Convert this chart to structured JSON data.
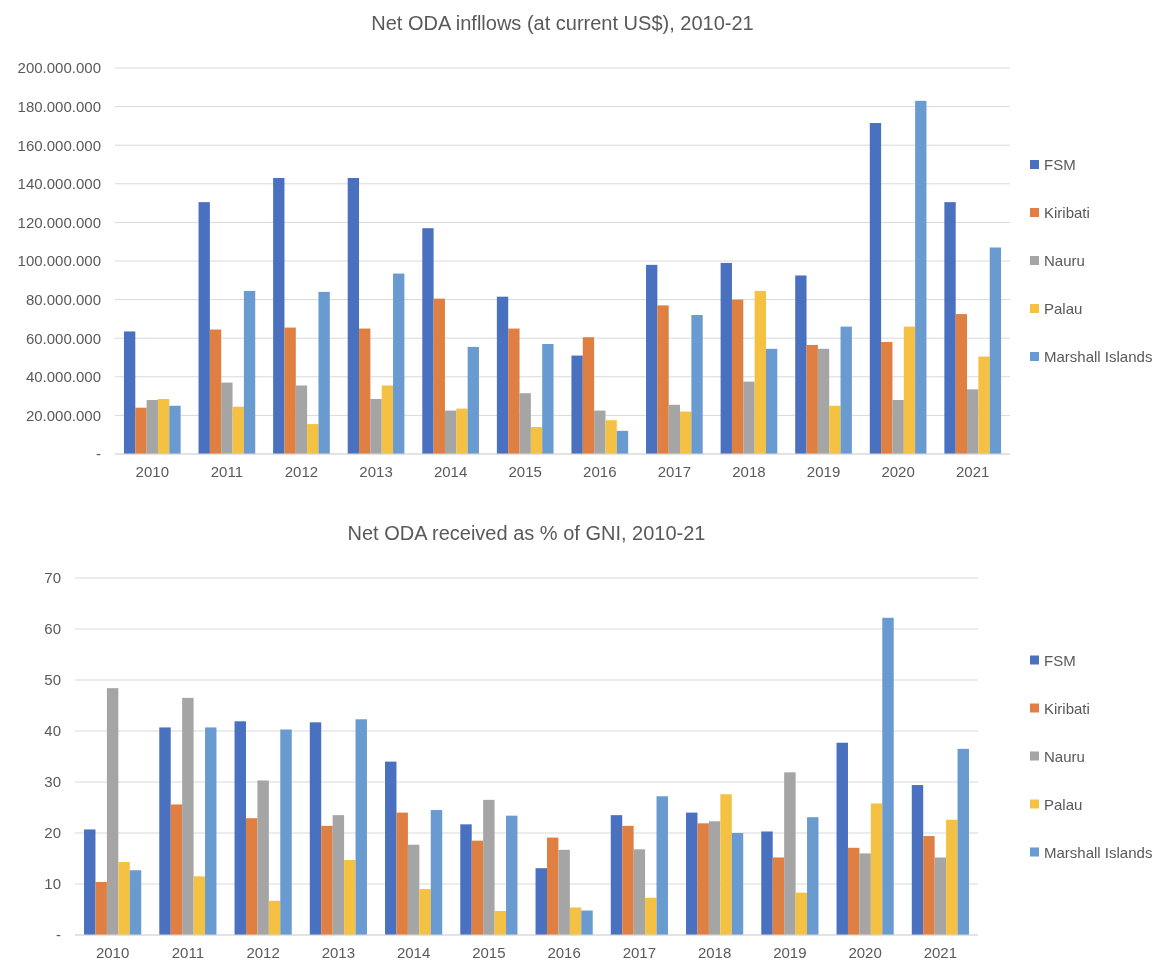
{
  "chart_data": [
    {
      "type": "bar",
      "title": "Net ODA infllows (at current US$), 2010-21",
      "categories": [
        "2010",
        "2011",
        "2012",
        "2013",
        "2014",
        "2015",
        "2016",
        "2017",
        "2018",
        "2019",
        "2020",
        "2021"
      ],
      "series": [
        {
          "name": "FSM",
          "color": "#4a71c0",
          "values": [
            63500000,
            130500000,
            143000000,
            143000000,
            117000000,
            81500000,
            51000000,
            98000000,
            99000000,
            92500000,
            171500000,
            130500000
          ]
        },
        {
          "name": "Kiribati",
          "color": "#df7f41",
          "values": [
            24000000,
            64500000,
            65500000,
            65000000,
            80500000,
            65000000,
            60500000,
            77000000,
            80000000,
            56500000,
            58000000,
            72500000
          ]
        },
        {
          "name": "Nauru",
          "color": "#a5a5a5",
          "values": [
            28000000,
            37000000,
            35500000,
            28500000,
            22500000,
            31500000,
            22500000,
            25500000,
            37500000,
            54500000,
            28000000,
            33500000
          ]
        },
        {
          "name": "Palau",
          "color": "#f4c142",
          "values": [
            28500000,
            24500000,
            15500000,
            35500000,
            23500000,
            14000000,
            17500000,
            22000000,
            84500000,
            25000000,
            66000000,
            50500000
          ]
        },
        {
          "name": "Marshall Islands",
          "color": "#699bd0",
          "values": [
            25000000,
            84500000,
            84000000,
            93500000,
            55500000,
            57000000,
            12000000,
            72000000,
            54500000,
            66000000,
            183000000,
            107000000
          ]
        }
      ],
      "ylim": [
        0,
        200000000
      ],
      "yticks": [
        {
          "value": 0,
          "label": "-"
        },
        {
          "value": 20000000,
          "label": "20.000.000"
        },
        {
          "value": 40000000,
          "label": "40.000.000"
        },
        {
          "value": 60000000,
          "label": "60.000.000"
        },
        {
          "value": 80000000,
          "label": "80.000.000"
        },
        {
          "value": 100000000,
          "label": "100.000.000"
        },
        {
          "value": 120000000,
          "label": "120.000.000"
        },
        {
          "value": 140000000,
          "label": "140.000.000"
        },
        {
          "value": 160000000,
          "label": "160.000.000"
        },
        {
          "value": 180000000,
          "label": "180.000.000"
        },
        {
          "value": 200000000,
          "label": "200.000.000"
        }
      ],
      "grid": "y",
      "legend": "right"
    },
    {
      "type": "bar",
      "title": "Net ODA received as % of GNI, 2010-21",
      "categories": [
        "2010",
        "2011",
        "2012",
        "2013",
        "2014",
        "2015",
        "2016",
        "2017",
        "2018",
        "2019",
        "2020",
        "2021"
      ],
      "series": [
        {
          "name": "FSM",
          "color": "#4a71c0",
          "values": [
            20.7,
            40.7,
            41.9,
            41.7,
            34,
            21.7,
            13.1,
            23.5,
            24,
            20.3,
            37.7,
            29.4
          ]
        },
        {
          "name": "Kiribati",
          "color": "#df7f41",
          "values": [
            10.4,
            25.6,
            22.9,
            21.4,
            24,
            18.5,
            19.1,
            21.4,
            21.9,
            15.2,
            17.1,
            19.4
          ]
        },
        {
          "name": "Nauru",
          "color": "#a5a5a5",
          "values": [
            48.4,
            46.5,
            30.3,
            23.5,
            17.7,
            26.5,
            16.7,
            16.8,
            22.3,
            31.9,
            16,
            15.2
          ]
        },
        {
          "name": "Palau",
          "color": "#f4c142",
          "values": [
            14.3,
            11.5,
            6.7,
            14.7,
            9,
            4.7,
            5.4,
            7.3,
            27.6,
            8.3,
            25.8,
            22.6
          ]
        },
        {
          "name": "Marshall Islands",
          "color": "#699bd0",
          "values": [
            12.7,
            40.7,
            40.3,
            42.3,
            24.5,
            23.4,
            4.8,
            27.2,
            20,
            23.1,
            62.2,
            36.5
          ]
        }
      ],
      "ylim": [
        0,
        70
      ],
      "yticks": [
        {
          "value": 0,
          "label": "-"
        },
        10,
        20,
        30,
        40,
        50,
        60,
        70
      ],
      "grid": "y",
      "legend": "right"
    }
  ]
}
